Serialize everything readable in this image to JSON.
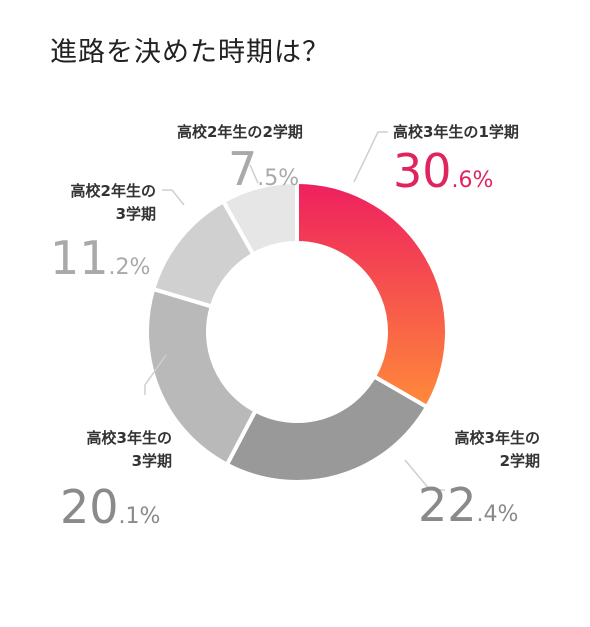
{
  "title": "進路を決めた時期は？",
  "chart_data": {
    "type": "pie",
    "title": "進路を決めた時期は？",
    "unit": "%",
    "categories": [
      "高校3年生の1学期",
      "高校3年生の2学期",
      "高校3年生の3学期",
      "高校2年生の3学期",
      "高校2年生の2学期"
    ],
    "values": [
      30.6,
      22.4,
      20.1,
      11.2,
      7.5
    ],
    "labels": [
      {
        "line1": "高校3年生の1学期",
        "line2": "",
        "int": "30",
        "dec": ".6%"
      },
      {
        "line1": "高校3年生の",
        "line2": "2学期",
        "int": "22",
        "dec": ".4%"
      },
      {
        "line1": "高校3年生の",
        "line2": "3学期",
        "int": "20",
        "dec": ".1%"
      },
      {
        "line1": "高校2年生の",
        "line2": "3学期",
        "int": "11",
        "dec": ".2%"
      },
      {
        "line1": "高校2年生の2学期",
        "line2": "",
        "int": "7",
        "dec": ".5%"
      }
    ],
    "colors": [
      "#ef2f5e",
      "#999999",
      "#b9b9b9",
      "#d0d0d0",
      "#e6e6e6"
    ],
    "highlight_gradient": [
      "#ee1f5f",
      "#ff8a3a"
    ],
    "donut": true
  }
}
